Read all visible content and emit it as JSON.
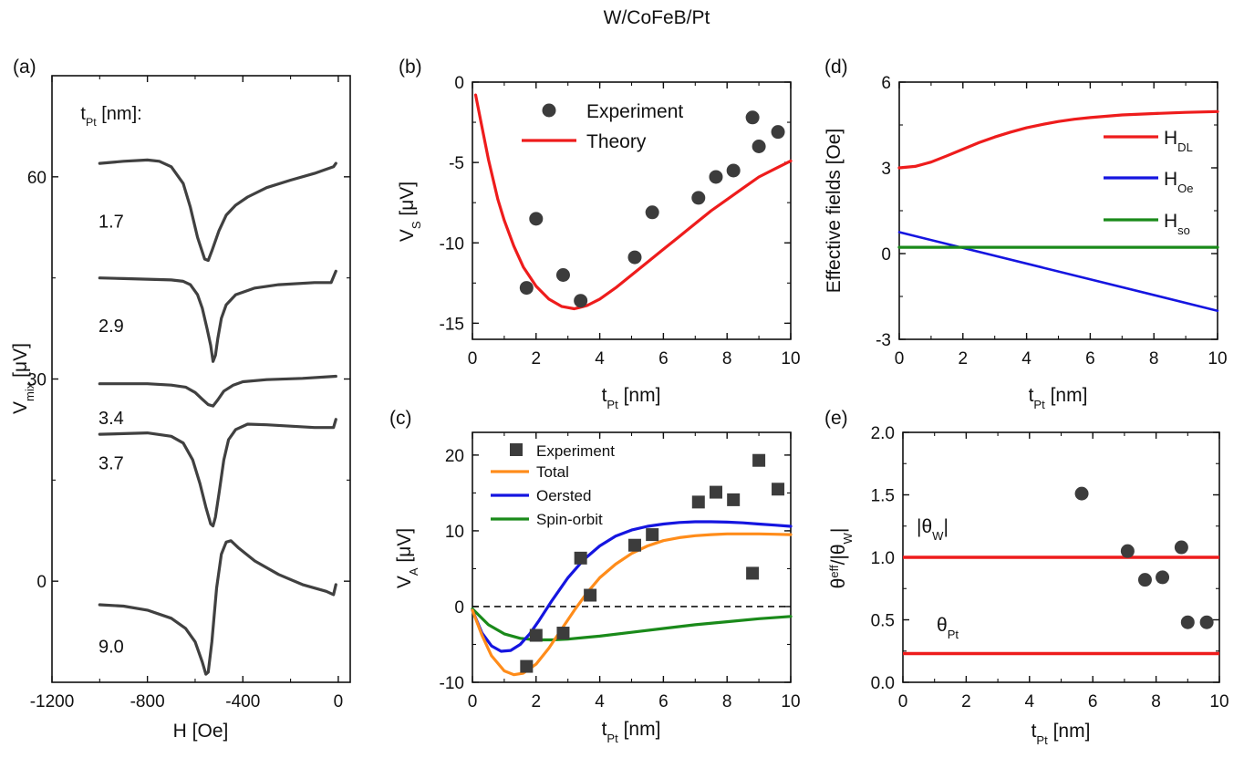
{
  "figure": {
    "title": "W/CoFeB/Pt"
  },
  "colors": {
    "red": "#ee1c1c",
    "blue": "#1515e0",
    "green": "#1a8a1a",
    "orange": "#ff8c1a",
    "marker": "#3c3c3c",
    "curve": "#404040"
  },
  "chart_data": [
    {
      "id": "a",
      "panel_label": "(a)",
      "type": "line",
      "xlabel": "H [Oe]",
      "ylabel_main": "V",
      "ylabel_sub": "mix",
      "ylabel_unit": " [μV]",
      "xlim": [
        -1200,
        50
      ],
      "ylim": [
        -15,
        75
      ],
      "xticks": [
        -1200,
        -800,
        -400,
        0
      ],
      "yticks": [
        0,
        30,
        60
      ],
      "annotation_main": "t",
      "annotation_sub": "Pt",
      "annotation_rest": " [nm]:",
      "series": [
        {
          "name": "1.7",
          "baseline": 62,
          "step": 0,
          "points": [
            [
              -1000,
              62.0
            ],
            [
              -900,
              62.3
            ],
            [
              -800,
              62.5
            ],
            [
              -750,
              62.3
            ],
            [
              -700,
              61.5
            ],
            [
              -650,
              59.0
            ],
            [
              -620,
              55.5
            ],
            [
              -590,
              51.0
            ],
            [
              -560,
              47.8
            ],
            [
              -545,
              47.6
            ],
            [
              -530,
              49.0
            ],
            [
              -500,
              52.0
            ],
            [
              -470,
              54.3
            ],
            [
              -430,
              55.8
            ],
            [
              -380,
              57.0
            ],
            [
              -300,
              58.4
            ],
            [
              -200,
              59.5
            ],
            [
              -100,
              60.5
            ],
            [
              -20,
              61.5
            ],
            [
              -10,
              62.0
            ]
          ]
        },
        {
          "name": "2.9",
          "baseline": 45,
          "step": 0,
          "points": [
            [
              -1000,
              45.0
            ],
            [
              -900,
              44.9
            ],
            [
              -800,
              44.8
            ],
            [
              -700,
              44.7
            ],
            [
              -650,
              44.5
            ],
            [
              -620,
              44.0
            ],
            [
              -590,
              42.5
            ],
            [
              -570,
              40.5
            ],
            [
              -550,
              37.5
            ],
            [
              -535,
              35.0
            ],
            [
              -525,
              32.6
            ],
            [
              -515,
              33.5
            ],
            [
              -505,
              36.0
            ],
            [
              -490,
              39.0
            ],
            [
              -470,
              41.0
            ],
            [
              -430,
              42.5
            ],
            [
              -350,
              43.5
            ],
            [
              -250,
              44.0
            ],
            [
              -100,
              44.3
            ],
            [
              -30,
              44.3
            ],
            [
              -10,
              46.0
            ]
          ]
        },
        {
          "name": "3.4",
          "baseline": 29.4,
          "step": 0,
          "points": [
            [
              -1000,
              29.3
            ],
            [
              -900,
              29.3
            ],
            [
              -800,
              29.3
            ],
            [
              -700,
              29.1
            ],
            [
              -640,
              28.8
            ],
            [
              -600,
              28.0
            ],
            [
              -570,
              27.0
            ],
            [
              -545,
              26.2
            ],
            [
              -525,
              26.0
            ],
            [
              -505,
              26.9
            ],
            [
              -480,
              28.2
            ],
            [
              -440,
              29.1
            ],
            [
              -400,
              29.6
            ],
            [
              -300,
              29.9
            ],
            [
              -150,
              30.1
            ],
            [
              -10,
              30.4
            ]
          ]
        },
        {
          "name": "3.7",
          "baseline": 22,
          "step": 0,
          "points": [
            [
              -1000,
              21.8
            ],
            [
              -900,
              21.9
            ],
            [
              -800,
              22.0
            ],
            [
              -700,
              21.5
            ],
            [
              -650,
              20.5
            ],
            [
              -610,
              18.0
            ],
            [
              -580,
              14.5
            ],
            [
              -555,
              11.0
            ],
            [
              -535,
              8.5
            ],
            [
              -525,
              8.2
            ],
            [
              -515,
              9.5
            ],
            [
              -500,
              13.0
            ],
            [
              -480,
              18.0
            ],
            [
              -460,
              21.0
            ],
            [
              -430,
              22.5
            ],
            [
              -380,
              23.3
            ],
            [
              -300,
              23.2
            ],
            [
              -200,
              23.0
            ],
            [
              -100,
              22.8
            ],
            [
              -20,
              22.8
            ],
            [
              -10,
              24.0
            ]
          ]
        },
        {
          "name": "9.0",
          "baseline": -4,
          "step": 0,
          "points": [
            [
              -1000,
              -3.5
            ],
            [
              -900,
              -3.7
            ],
            [
              -800,
              -4.3
            ],
            [
              -700,
              -5.5
            ],
            [
              -640,
              -7.0
            ],
            [
              -600,
              -9.0
            ],
            [
              -570,
              -12.0
            ],
            [
              -555,
              -13.8
            ],
            [
              -545,
              -13.5
            ],
            [
              -530,
              -9.0
            ],
            [
              -510,
              -1.0
            ],
            [
              -490,
              4.0
            ],
            [
              -470,
              5.8
            ],
            [
              -450,
              6.0
            ],
            [
              -420,
              5.0
            ],
            [
              -350,
              3.0
            ],
            [
              -250,
              1.0
            ],
            [
              -150,
              -0.5
            ],
            [
              -50,
              -1.5
            ],
            [
              -20,
              -2.0
            ],
            [
              -10,
              -0.5
            ]
          ]
        }
      ]
    },
    {
      "id": "b",
      "panel_label": "(b)",
      "type": "scatter+line",
      "xlabel_main": "t",
      "xlabel_sub": "Pt",
      "xlabel_unit": " [nm]",
      "ylabel_main": "V",
      "ylabel_sub": "S",
      "ylabel_unit": " [μV]",
      "xlim": [
        0,
        10
      ],
      "ylim": [
        -16,
        0
      ],
      "xticks": [
        0,
        2,
        4,
        6,
        8,
        10
      ],
      "yticks": [
        -15,
        -10,
        -5,
        0
      ],
      "legend": {
        "placement": "top-center",
        "experiment": "Experiment",
        "theory": "Theory"
      },
      "experiment": {
        "x": [
          1.7,
          2.0,
          2.85,
          3.4,
          5.1,
          5.65,
          7.1,
          7.65,
          8.2,
          8.8,
          9.0,
          9.6
        ],
        "y": [
          -12.8,
          -8.5,
          -12.0,
          -13.6,
          -10.9,
          -8.1,
          -7.2,
          -5.9,
          -5.5,
          -2.2,
          -4.0,
          -3.1
        ]
      },
      "theory": {
        "x": [
          0.1,
          0.3,
          0.5,
          0.8,
          1.0,
          1.3,
          1.6,
          2.0,
          2.4,
          2.8,
          3.2,
          3.6,
          4.0,
          4.5,
          5.0,
          5.5,
          6.0,
          6.5,
          7.0,
          7.5,
          8.0,
          8.5,
          9.0,
          9.5,
          10.0
        ],
        "y": [
          -0.8,
          -2.8,
          -4.8,
          -7.3,
          -8.6,
          -10.2,
          -11.5,
          -12.7,
          -13.5,
          -13.95,
          -14.1,
          -13.9,
          -13.5,
          -12.8,
          -12.0,
          -11.2,
          -10.4,
          -9.6,
          -8.8,
          -8.0,
          -7.3,
          -6.6,
          -5.9,
          -5.4,
          -4.9
        ]
      }
    },
    {
      "id": "c",
      "panel_label": "(c)",
      "type": "scatter+line",
      "xlabel_main": "t",
      "xlabel_sub": "Pt",
      "xlabel_unit": " [nm]",
      "ylabel_main": "V",
      "ylabel_sub": "A",
      "ylabel_unit": " [μV]",
      "xlim": [
        0,
        10
      ],
      "ylim": [
        -10,
        23
      ],
      "xticks": [
        0,
        2,
        4,
        6,
        8,
        10
      ],
      "yticks": [
        -10,
        0,
        10,
        20
      ],
      "zero_line": "dashed",
      "legend": {
        "placement": "top-left",
        "experiment": "Experiment",
        "total": "Total",
        "oersted": "Oersted",
        "spin_orbit": "Spin-orbit"
      },
      "experiment": {
        "x": [
          1.7,
          2.0,
          2.85,
          3.4,
          3.7,
          5.1,
          5.65,
          7.1,
          7.65,
          8.2,
          8.8,
          9.0,
          9.6
        ],
        "y": [
          -7.9,
          -3.8,
          -3.5,
          6.4,
          1.5,
          8.1,
          9.5,
          13.8,
          15.1,
          14.1,
          4.4,
          19.3,
          15.5
        ]
      },
      "total": {
        "x": [
          0,
          0.3,
          0.6,
          1.0,
          1.3,
          1.6,
          2.0,
          2.4,
          2.8,
          3.2,
          3.6,
          4.0,
          4.5,
          5.0,
          5.5,
          6.0,
          6.5,
          7.0,
          7.5,
          8.0,
          8.5,
          9.0,
          9.5,
          10.0
        ],
        "y": [
          -0.5,
          -3.8,
          -6.5,
          -8.5,
          -9.0,
          -8.8,
          -7.6,
          -5.5,
          -3.0,
          -0.5,
          1.8,
          3.8,
          5.6,
          7.0,
          8.0,
          8.7,
          9.1,
          9.35,
          9.5,
          9.6,
          9.6,
          9.6,
          9.55,
          9.5
        ]
      },
      "oersted": {
        "x": [
          0,
          0.3,
          0.6,
          0.9,
          1.2,
          1.5,
          1.8,
          2.1,
          2.5,
          3.0,
          3.5,
          4.0,
          4.5,
          5.0,
          5.5,
          6.0,
          6.5,
          7.0,
          7.5,
          8.0,
          8.5,
          9.0,
          9.5,
          10.0
        ],
        "y": [
          -0.5,
          -3.5,
          -5.2,
          -5.9,
          -5.8,
          -5.0,
          -3.6,
          -1.8,
          0.8,
          3.8,
          6.2,
          8.0,
          9.3,
          10.1,
          10.6,
          10.9,
          11.1,
          11.2,
          11.2,
          11.15,
          11.05,
          10.9,
          10.75,
          10.6
        ]
      },
      "spin_orbit": {
        "x": [
          0,
          0.5,
          1.0,
          1.5,
          2.0,
          2.5,
          3.0,
          3.5,
          4.0,
          5.0,
          6.0,
          7.0,
          8.0,
          9.0,
          10.0
        ],
        "y": [
          -0.3,
          -2.4,
          -3.6,
          -4.2,
          -4.4,
          -4.4,
          -4.3,
          -4.1,
          -3.9,
          -3.4,
          -2.9,
          -2.4,
          -2.0,
          -1.6,
          -1.3
        ]
      }
    },
    {
      "id": "d",
      "panel_label": "(d)",
      "type": "line",
      "xlabel_main": "t",
      "xlabel_sub": "Pt",
      "xlabel_unit": " [nm]",
      "ylabel": "Effective fields [Oe]",
      "xlim": [
        0,
        10
      ],
      "ylim": [
        -3,
        6
      ],
      "xticks": [
        0,
        2,
        4,
        6,
        8,
        10
      ],
      "yticks": [
        -3,
        0,
        3,
        6
      ],
      "legend": {
        "placement": "right",
        "entries": [
          {
            "key": "dl",
            "main": "H",
            "sub": "DL"
          },
          {
            "key": "oe",
            "main": "H",
            "sub": "Oe"
          },
          {
            "key": "so",
            "main": "H",
            "sub": "so"
          }
        ]
      },
      "dl": {
        "x": [
          0,
          0.5,
          1.0,
          1.5,
          2.0,
          2.5,
          3.0,
          3.5,
          4.0,
          4.5,
          5.0,
          5.5,
          6.0,
          7.0,
          8.0,
          9.0,
          10.0
        ],
        "y": [
          3.0,
          3.05,
          3.2,
          3.42,
          3.65,
          3.88,
          4.08,
          4.25,
          4.4,
          4.52,
          4.62,
          4.7,
          4.76,
          4.85,
          4.9,
          4.94,
          4.97
        ]
      },
      "oe": {
        "x": [
          0,
          10
        ],
        "y": [
          0.75,
          -2.0
        ]
      },
      "so": {
        "x": [
          0,
          10
        ],
        "y": [
          0.22,
          0.22
        ]
      }
    },
    {
      "id": "e",
      "panel_label": "(e)",
      "type": "scatter+line",
      "xlabel_main": "t",
      "xlabel_sub": "Pt",
      "xlabel_unit": " [nm]",
      "ylabel_main": "θ",
      "ylabel_sup": "eff",
      "ylabel_rest": "/|θ",
      "ylabel_sub": "W",
      "ylabel_end": "|",
      "xlim": [
        0,
        10
      ],
      "ylim": [
        0,
        2.0
      ],
      "xticks": [
        0,
        2,
        4,
        6,
        8,
        10
      ],
      "yticks": [
        0.0,
        0.5,
        1.0,
        1.5,
        2.0
      ],
      "ytick_labels": [
        "0.0",
        "0.5",
        "1.0",
        "1.5",
        "2.0"
      ],
      "theta_w_label": {
        "open": "|θ",
        "sub": "W",
        "close": "|"
      },
      "theta_pt_label": {
        "main": "θ",
        "sub": "Pt"
      },
      "theta_w": 1.0,
      "theta_pt": 0.23,
      "experiment": {
        "x": [
          5.65,
          7.1,
          7.65,
          8.2,
          8.8,
          9.0,
          9.6
        ],
        "y": [
          1.51,
          1.05,
          0.82,
          0.84,
          1.08,
          0.48,
          0.48
        ]
      }
    }
  ]
}
